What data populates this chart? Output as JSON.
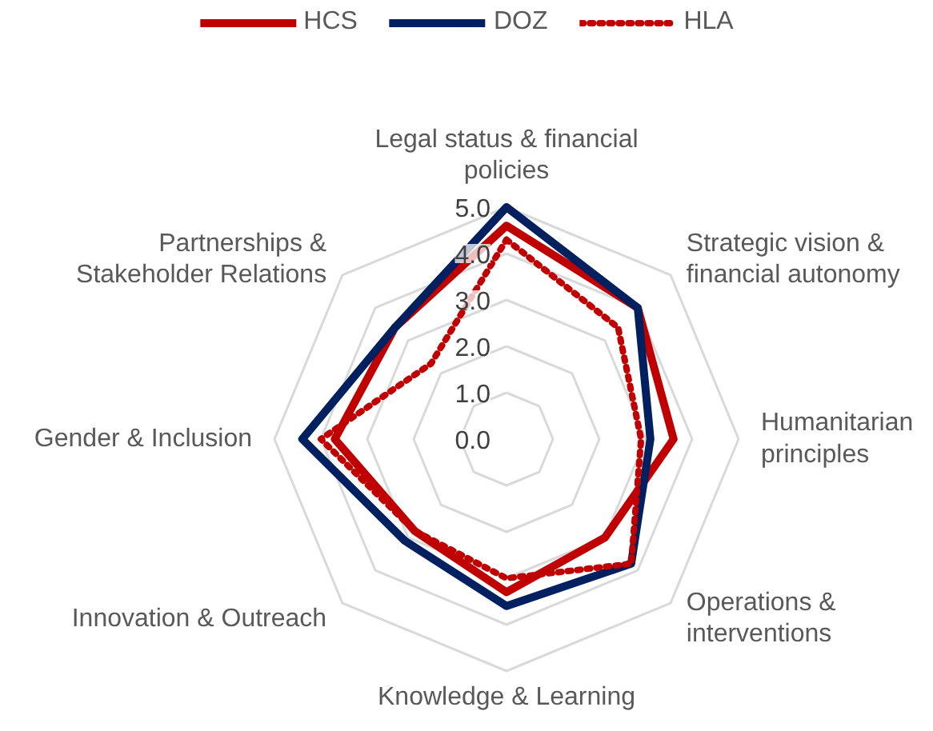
{
  "chart_data": {
    "type": "radar",
    "categories": [
      "Legal status & financial\npolicies",
      "Strategic vision &\nfinancial autonomy",
      "Humanitarian\nprinciples",
      "Operations &\ninterventions",
      "Knowledge & Learning",
      "Innovation & Outreach",
      "Gender & Inclusion",
      "Partnerships &\nStakeholder Relations"
    ],
    "series": [
      {
        "name": "HCS",
        "color": "#c00000",
        "line_style": "solid",
        "values": [
          4.6,
          4.0,
          3.6,
          3.0,
          3.3,
          2.8,
          3.7,
          3.4
        ]
      },
      {
        "name": "DOZ",
        "color": "#002060",
        "line_style": "solid",
        "values": [
          5.0,
          4.0,
          3.1,
          3.8,
          3.6,
          3.1,
          4.4,
          3.4
        ]
      },
      {
        "name": "HLA",
        "color": "#c00000",
        "line_style": "dotted",
        "values": [
          4.3,
          3.4,
          2.9,
          3.8,
          3.0,
          2.8,
          4.0,
          2.3
        ]
      }
    ],
    "ylim": [
      0,
      5
    ],
    "yticks": [
      {
        "value": 0,
        "label": "0.0"
      },
      {
        "value": 1,
        "label": "1.0"
      },
      {
        "value": 2,
        "label": "2.0"
      },
      {
        "value": 3,
        "label": "3.0"
      },
      {
        "value": 4,
        "label": "4.0"
      },
      {
        "value": 5,
        "label": "5.0"
      }
    ],
    "grid": true,
    "legend": "top"
  }
}
